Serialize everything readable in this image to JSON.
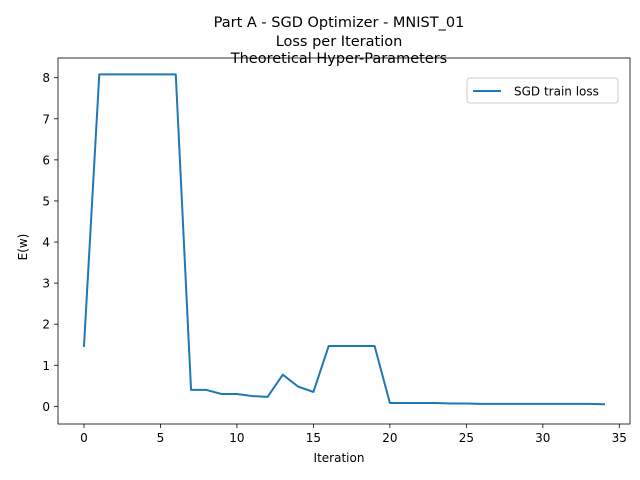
{
  "chart_data": {
    "type": "line",
    "title_lines": [
      "Part A -  SGD Optimizer - MNIST_01",
      "Loss per Iteration",
      "Theoretical Hyper-Parameters"
    ],
    "xlabel": "Iteration",
    "ylabel": "E(w)",
    "xlim": [
      -1.7,
      35.7
    ],
    "ylim": [
      -0.43,
      8.48
    ],
    "x_ticks": [
      0,
      5,
      10,
      15,
      20,
      25,
      30,
      35
    ],
    "y_ticks": [
      0,
      1,
      2,
      3,
      4,
      5,
      6,
      7,
      8
    ],
    "grid": false,
    "legend_position": "upper-right",
    "series": [
      {
        "name": "SGD train loss",
        "color": "#1f77b4",
        "x": [
          0,
          1,
          2,
          3,
          4,
          5,
          6,
          7,
          8,
          9,
          10,
          11,
          12,
          13,
          14,
          15,
          16,
          17,
          18,
          19,
          20,
          21,
          22,
          23,
          24,
          25,
          26,
          27,
          28,
          29,
          30,
          31,
          32,
          33,
          34
        ],
        "y": [
          1.47,
          8.08,
          8.08,
          8.08,
          8.08,
          8.08,
          8.08,
          0.4,
          0.4,
          0.3,
          0.3,
          0.25,
          0.23,
          0.77,
          0.48,
          0.35,
          1.47,
          1.47,
          1.47,
          1.47,
          0.08,
          0.08,
          0.08,
          0.08,
          0.07,
          0.07,
          0.06,
          0.06,
          0.06,
          0.06,
          0.06,
          0.06,
          0.06,
          0.06,
          0.05
        ]
      }
    ]
  }
}
